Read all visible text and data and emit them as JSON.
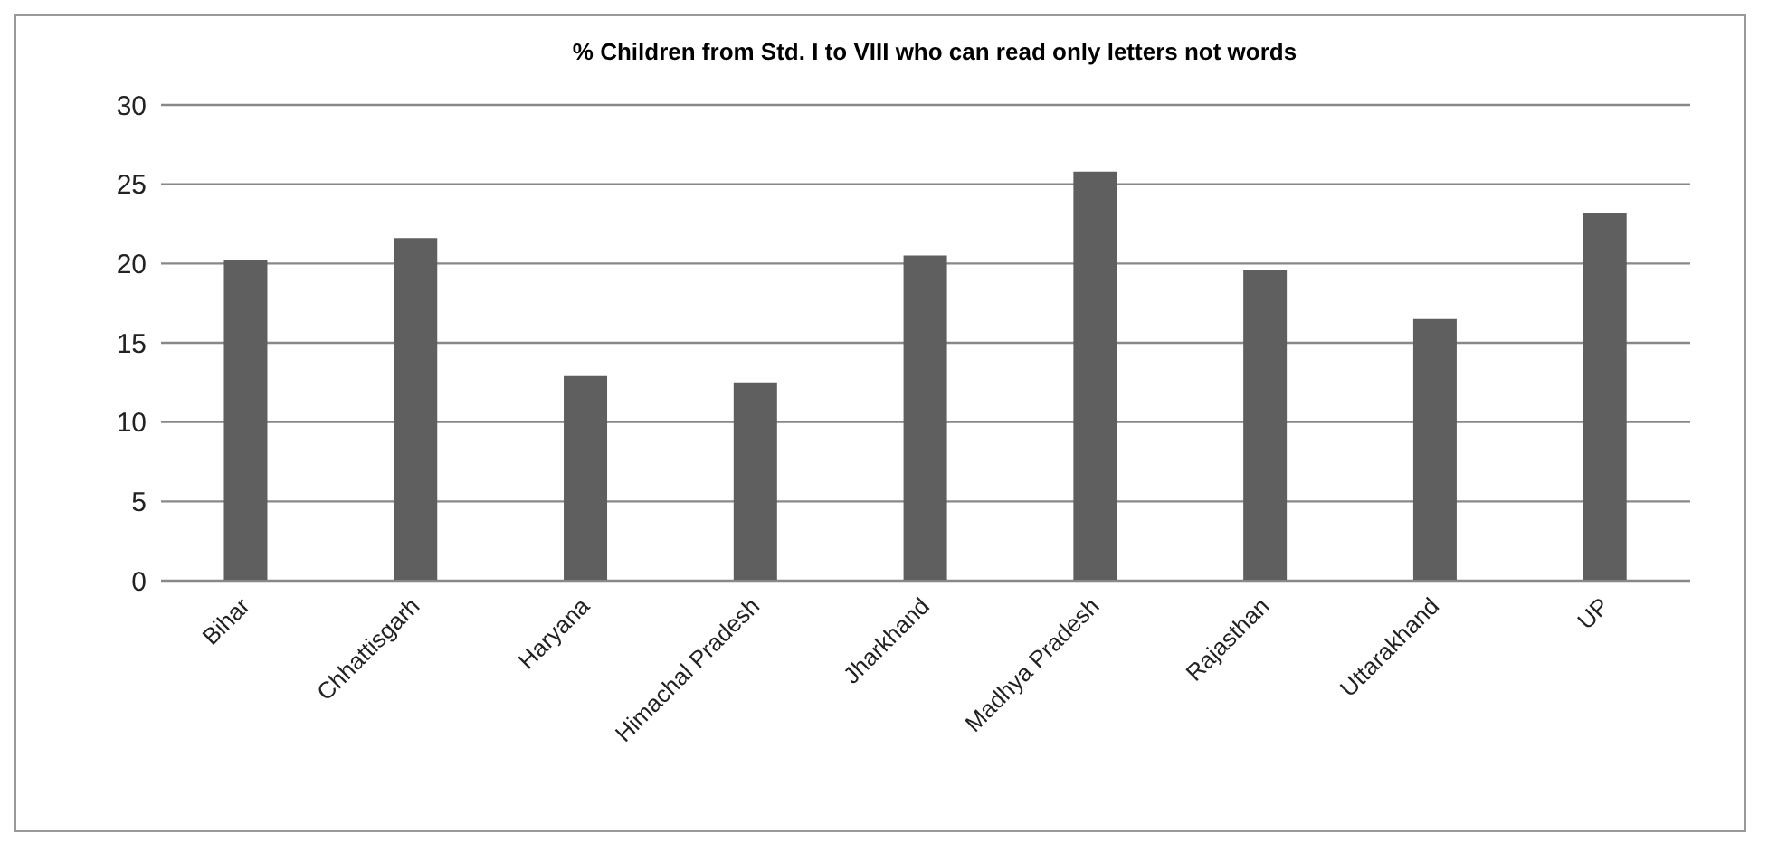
{
  "chart_data": {
    "type": "bar",
    "title": "% Children from Std. I to VIII who can read only letters not words",
    "categories": [
      "Bihar",
      "Chhattisgarh",
      "Haryana",
      "Himachal Pradesh",
      "Jharkhand",
      "Madhya Pradesh",
      "Rajasthan",
      "Uttarakhand",
      "UP"
    ],
    "values": [
      20.2,
      21.6,
      12.9,
      12.5,
      20.5,
      25.8,
      19.6,
      16.5,
      23.2
    ],
    "color": "#5f5f5f",
    "ylim": [
      0,
      30
    ],
    "yticks": [
      0,
      5,
      10,
      15,
      20,
      25,
      30
    ],
    "grid": "y",
    "legend": false
  }
}
